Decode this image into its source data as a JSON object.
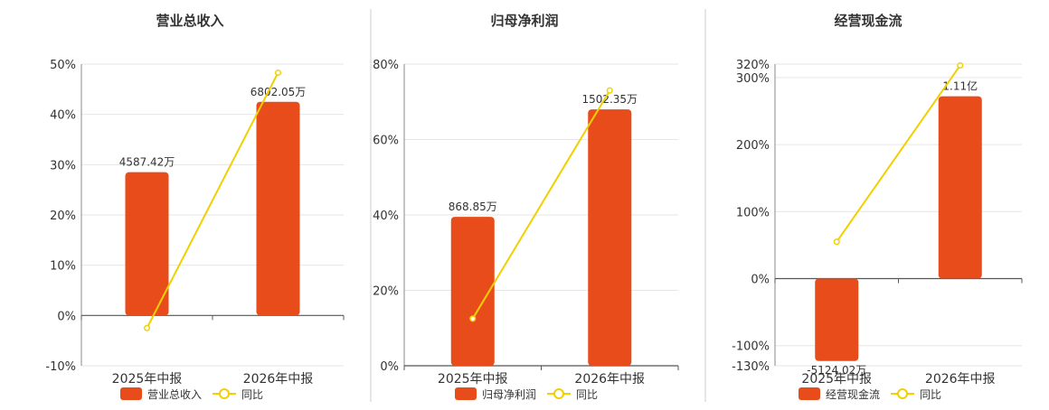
{
  "colors": {
    "bar": "#e84c1b",
    "line": "#f0d000",
    "axis": "#888888",
    "grid": "#e6e6e6",
    "divider": "#cccccc",
    "text": "#333333"
  },
  "chart_data": [
    {
      "type": "bar",
      "title": "营业总收入",
      "categories": [
        "2025年中报",
        "2026年中报"
      ],
      "series": [
        {
          "name": "营业总收入",
          "type": "bar",
          "values": [
            28.5,
            42.5
          ],
          "labels": [
            "4587.42万",
            "6802.05万"
          ]
        },
        {
          "name": "同比",
          "type": "line",
          "values": [
            -2.5,
            48.3
          ]
        }
      ],
      "ylim": [
        -10,
        50
      ],
      "yticks": [
        -10,
        0,
        10,
        20,
        30,
        40,
        50
      ],
      "ytick_labels": [
        "-10%",
        "0%",
        "10%",
        "20%",
        "30%",
        "40%",
        "50%"
      ],
      "grid": true,
      "legend": "bottom"
    },
    {
      "type": "bar",
      "title": "归母净利润",
      "categories": [
        "2025年中报",
        "2026年中报"
      ],
      "series": [
        {
          "name": "归母净利润",
          "type": "bar",
          "values": [
            39.5,
            68
          ],
          "labels": [
            "868.85万",
            "1502.35万"
          ]
        },
        {
          "name": "同比",
          "type": "line",
          "values": [
            12.5,
            73
          ]
        }
      ],
      "ylim": [
        0,
        80
      ],
      "yticks": [
        0,
        20,
        40,
        60,
        80
      ],
      "ytick_labels": [
        "0%",
        "20%",
        "40%",
        "60%",
        "80%"
      ],
      "grid": true,
      "legend": "bottom"
    },
    {
      "type": "bar",
      "title": "经营现金流",
      "categories": [
        "2025年中报",
        "2026年中报"
      ],
      "series": [
        {
          "name": "经营现金流",
          "type": "bar",
          "values": [
            -123,
            272
          ],
          "labels": [
            "-5124.02万",
            "1.11亿"
          ]
        },
        {
          "name": "同比",
          "type": "line",
          "values": [
            55,
            318
          ]
        }
      ],
      "ylim": [
        -130,
        320
      ],
      "yticks": [
        -130,
        -100,
        0,
        100,
        200,
        300,
        320
      ],
      "ytick_labels": [
        "-130%",
        "-100%",
        "0%",
        "100%",
        "200%",
        "300%",
        "320%"
      ],
      "grid": true,
      "legend": "bottom"
    }
  ]
}
